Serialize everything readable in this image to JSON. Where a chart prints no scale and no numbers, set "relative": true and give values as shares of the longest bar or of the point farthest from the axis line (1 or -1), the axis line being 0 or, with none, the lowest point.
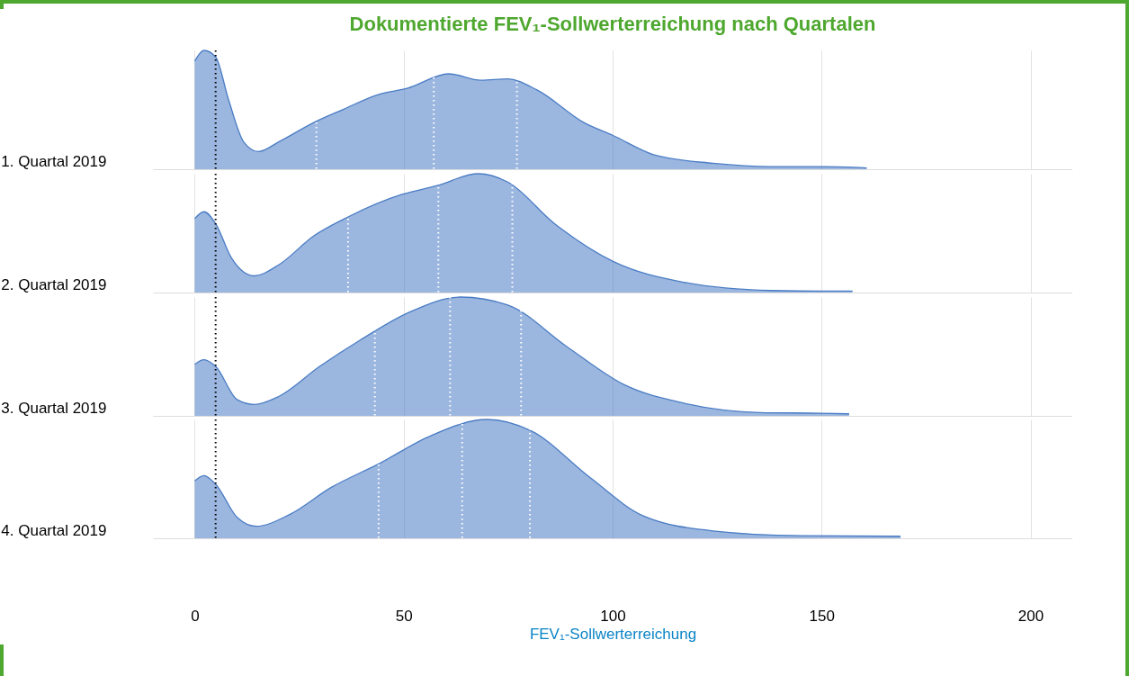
{
  "chart_data": [
    {
      "type": "area",
      "title": "Dokumentierte FEV₁-Sollwerterreichung nach Quartalen",
      "ylabel": "1. Quartal 2019",
      "relative": true,
      "xlim": [
        -10,
        210
      ],
      "xticks": [
        0,
        50,
        100,
        150,
        200
      ],
      "grid": "x",
      "tick_labels": false,
      "series": [
        {
          "color": "#4a7cc4",
          "x": [
            0,
            2.2,
            5,
            8.1,
            11.7,
            15.2,
            20.1,
            28.5,
            35.5,
            43.9,
            51,
            60.8,
            68.5,
            74.9,
            81.9,
            93.1,
            100.1,
            110,
            124,
            138,
            150.7,
            160.8
          ],
          "values": [
            0.91,
            1,
            0.945,
            0.585,
            0.23,
            0.148,
            0.23,
            0.393,
            0.503,
            0.628,
            0.683,
            0.803,
            0.749,
            0.76,
            0.667,
            0.393,
            0.284,
            0.12,
            0.05,
            0.022,
            0.022,
            0.011
          ]
        }
      ],
      "ref_lines": [
        {
          "axis": "x",
          "value": 5,
          "color": "#000000",
          "line_style": "dotted"
        },
        {
          "axis": "x",
          "value": 29.1,
          "color": "#ffffff",
          "line_style": "dotted"
        },
        {
          "axis": "x",
          "value": 57.2,
          "color": "#ffffff",
          "line_style": "dotted"
        },
        {
          "axis": "x",
          "value": 77.1,
          "color": "#ffffff",
          "line_style": "dotted"
        }
      ]
    },
    {
      "type": "area",
      "ylabel": "2. Quartal 2019",
      "relative": true,
      "xlim": [
        -10,
        210
      ],
      "xticks": [
        0,
        50,
        100,
        150,
        200
      ],
      "grid": "x",
      "tick_labels": false,
      "series": [
        {
          "color": "#4a7cc4",
          "x": [
            0,
            2.2,
            5,
            8.8,
            14.2,
            20.1,
            28.5,
            36.9,
            49.6,
            58,
            67.8,
            74.9,
            86.1,
            100.1,
            117,
            138,
            150,
            157.4
          ],
          "values": [
            0.622,
            0.68,
            0.58,
            0.29,
            0.14,
            0.233,
            0.477,
            0.64,
            0.826,
            0.9,
            1,
            0.93,
            0.58,
            0.262,
            0.087,
            0.017,
            0.012,
            0.012
          ]
        }
      ],
      "ref_lines": [
        {
          "axis": "x",
          "value": 5,
          "color": "#000000",
          "line_style": "dotted"
        },
        {
          "axis": "x",
          "value": 36.7,
          "color": "#ffffff",
          "line_style": "dotted"
        },
        {
          "axis": "x",
          "value": 58.3,
          "color": "#ffffff",
          "line_style": "dotted"
        },
        {
          "axis": "x",
          "value": 76,
          "color": "#ffffff",
          "line_style": "dotted"
        }
      ]
    },
    {
      "type": "area",
      "ylabel": "3. Quartal 2019",
      "relative": true,
      "xlim": [
        -10,
        210
      ],
      "xticks": [
        0,
        50,
        100,
        150,
        200
      ],
      "grid": "x",
      "tick_labels": false,
      "series": [
        {
          "color": "#4a7cc4",
          "x": [
            0,
            2.2,
            5,
            10.2,
            14.2,
            20.1,
            29.9,
            39.7,
            50.9,
            63.6,
            74.9,
            89,
            103,
            117,
            135.3,
            150,
            156.6
          ],
          "values": [
            0.433,
            0.472,
            0.416,
            0.135,
            0.096,
            0.163,
            0.416,
            0.64,
            0.865,
            1,
            0.933,
            0.584,
            0.258,
            0.107,
            0.028,
            0.022,
            0.017
          ]
        }
      ],
      "ref_lines": [
        {
          "axis": "x",
          "value": 5,
          "color": "#000000",
          "line_style": "dotted"
        },
        {
          "axis": "x",
          "value": 43.1,
          "color": "#ffffff",
          "line_style": "dotted"
        },
        {
          "axis": "x",
          "value": 61.1,
          "color": "#ffffff",
          "line_style": "dotted"
        },
        {
          "axis": "x",
          "value": 78.1,
          "color": "#ffffff",
          "line_style": "dotted"
        }
      ]
    },
    {
      "type": "area",
      "ylabel": "4. Quartal 2019",
      "xlabel": "FEV₁-Sollwerterreichung",
      "relative": true,
      "xlim": [
        -10,
        210
      ],
      "xticks": [
        0,
        50,
        100,
        150,
        200
      ],
      "grid": "x",
      "tick_labels": "x",
      "series": [
        {
          "color": "#4a7cc4",
          "x": [
            0,
            2.2,
            5,
            10.2,
            14.7,
            22.8,
            32.6,
            43.9,
            56.6,
            69.9,
            80.5,
            94.6,
            107.2,
            124,
            145,
            168.9
          ],
          "values": [
            0.483,
            0.528,
            0.455,
            0.174,
            0.101,
            0.202,
            0.427,
            0.624,
            0.865,
            1,
            0.904,
            0.511,
            0.191,
            0.062,
            0.022,
            0.017
          ]
        }
      ],
      "ref_lines": [
        {
          "axis": "x",
          "value": 5,
          "color": "#000000",
          "line_style": "dotted"
        },
        {
          "axis": "x",
          "value": 44,
          "color": "#ffffff",
          "line_style": "dotted"
        },
        {
          "axis": "x",
          "value": 64,
          "color": "#ffffff",
          "line_style": "dotted"
        },
        {
          "axis": "x",
          "value": 80.2,
          "color": "#ffffff",
          "line_style": "dotted"
        }
      ]
    }
  ]
}
